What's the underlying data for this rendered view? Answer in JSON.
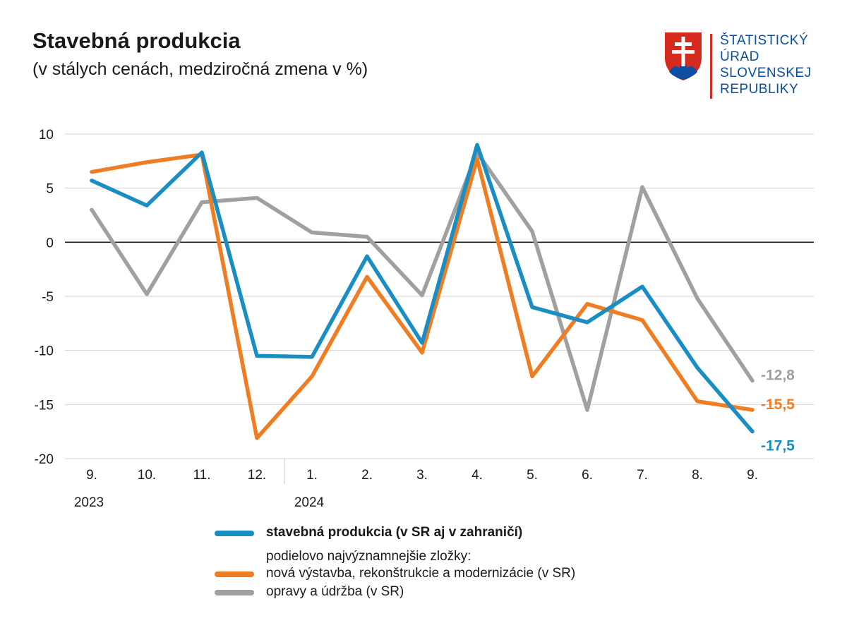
{
  "header": {
    "title": "Stavebná produkcia",
    "subtitle": "(v stálych cenách, medziročná zmena v %)"
  },
  "logo": {
    "lines": [
      "ŠTATISTICKÝ",
      "ÚRAD",
      "SLOVENSKEJ",
      "REPUBLIKY"
    ]
  },
  "colors": {
    "blue": "#1a8ec3",
    "orange": "#f07d22",
    "gray": "#a0a0a0",
    "grid": "#d4d4d4",
    "zero": "#1a1a1a",
    "logo_blue": "#0b4ea2",
    "logo_red": "#d52b1e"
  },
  "chart_data": {
    "type": "line",
    "title": "Stavebná produkcia",
    "ylim": [
      -20,
      10
    ],
    "yticks": [
      "10",
      "5",
      "0",
      "-5",
      "-10",
      "-15",
      "-20"
    ],
    "ytick_values": [
      10,
      5,
      0,
      -5,
      -10,
      -15,
      -20
    ],
    "categories": [
      "9.",
      "10.",
      "11.",
      "12.",
      "1.",
      "2.",
      "3.",
      "4.",
      "5.",
      "6.",
      "7.",
      "8.",
      "9."
    ],
    "year_labels": [
      {
        "index": 0,
        "label": "2023"
      },
      {
        "index": 4,
        "label": "2024"
      }
    ],
    "series": [
      {
        "name": "opravy a údržba (v SR)",
        "color": "#a0a0a0",
        "values": [
          3.0,
          -4.8,
          3.7,
          4.1,
          0.9,
          0.5,
          -4.9,
          8.3,
          1.0,
          -15.5,
          5.1,
          -5.2,
          -12.8
        ],
        "end_label": "-12,8"
      },
      {
        "name": "nová výstavba, rekonštrukcie a modernizácie (v SR)",
        "color": "#f07d22",
        "values": [
          6.5,
          7.4,
          8.1,
          -18.1,
          -12.4,
          -3.2,
          -10.2,
          7.7,
          -12.4,
          -5.7,
          -7.2,
          -14.7,
          -15.5
        ],
        "end_label": "-15,5"
      },
      {
        "name": "stavebná produkcia (v SR aj v zahraničí)",
        "color": "#1a8ec3",
        "values": [
          5.7,
          3.4,
          8.3,
          -10.5,
          -10.6,
          -1.3,
          -9.3,
          9.0,
          -6.0,
          -7.4,
          -4.1,
          -11.6,
          -17.5
        ],
        "end_label": "-17,5"
      }
    ]
  },
  "legend": {
    "main": "stavebná produkcia (v SR aj v zahraničí)",
    "note": "podielovo najvýznamnejšie zložky:",
    "orange": "nová výstavba, rekonštrukcie a modernizácie (v SR)",
    "gray": "opravy a údržba (v SR)"
  }
}
